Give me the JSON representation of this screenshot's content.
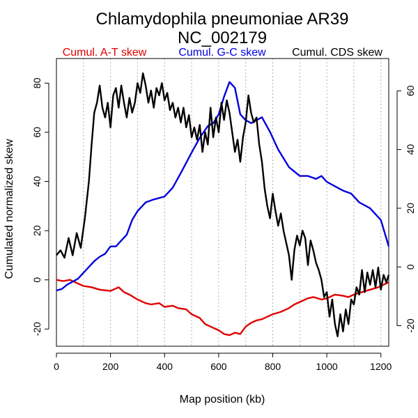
{
  "chart_data": {
    "type": "line",
    "title": "Chlamydophila pneumoniae AR39",
    "subtitle": "NC_002179",
    "xlabel": "Map position (kb)",
    "ylabel": "Cumulated normalized skew",
    "xlim": [
      0,
      1229
    ],
    "ylim_left": [
      -27,
      90
    ],
    "ylim_right": [
      -27,
      71
    ],
    "x_ticks": [
      0,
      200,
      400,
      600,
      800,
      1000,
      1200
    ],
    "y_ticks_left": [
      -20,
      0,
      20,
      40,
      60,
      80
    ],
    "y_ticks_right": [
      -20,
      0,
      20,
      40,
      60
    ],
    "grid_x": [
      0,
      100,
      200,
      300,
      400,
      500,
      600,
      700,
      800,
      900,
      1000,
      1100,
      1200
    ],
    "legend": [
      {
        "label": "Cumul. A-T skew",
        "color": "#e00000"
      },
      {
        "label": "Cumul. G-C skew",
        "color": "#0000dd"
      },
      {
        "label": "Cumul. CDS skew",
        "color": "#000000"
      }
    ],
    "series": [
      {
        "name": "Cumul. A-T skew",
        "color": "#e00000",
        "axis": "left",
        "x": [
          0,
          25,
          50,
          80,
          100,
          130,
          160,
          200,
          230,
          250,
          270,
          300,
          330,
          350,
          380,
          400,
          430,
          450,
          480,
          500,
          530,
          550,
          570,
          600,
          620,
          640,
          660,
          680,
          700,
          720,
          740,
          760,
          780,
          800,
          830,
          860,
          880,
          900,
          930,
          950,
          980,
          1000,
          1030,
          1060,
          1080,
          1100,
          1130,
          1160,
          1190,
          1229
        ],
        "values": [
          0,
          -0.5,
          0,
          -1.5,
          -2.5,
          -3,
          -4,
          -4.5,
          -3,
          -5,
          -6,
          -8,
          -9.5,
          -10,
          -9.5,
          -11,
          -10.5,
          -11.5,
          -12,
          -14,
          -15.5,
          -18,
          -19,
          -20.5,
          -22,
          -22.5,
          -21.5,
          -22,
          -19,
          -17.5,
          -16.5,
          -16,
          -15,
          -14,
          -13,
          -11.5,
          -10,
          -9,
          -7.5,
          -7,
          -8,
          -7.5,
          -6,
          -6.5,
          -7,
          -6,
          -5,
          -4,
          -3,
          -1
        ]
      },
      {
        "name": "Cumul. G-C skew",
        "color": "#0000dd",
        "axis": "right",
        "x": [
          0,
          20,
          40,
          60,
          80,
          100,
          120,
          140,
          160,
          180,
          200,
          220,
          240,
          260,
          280,
          300,
          330,
          360,
          400,
          430,
          460,
          500,
          530,
          560,
          580,
          600,
          620,
          640,
          660,
          680,
          700,
          720,
          760,
          790,
          820,
          860,
          900,
          930,
          960,
          980,
          1000,
          1040,
          1060,
          1090,
          1120,
          1160,
          1200,
          1229
        ],
        "values": [
          -8,
          -7.5,
          -6,
          -5,
          -4,
          -2,
          0,
          2,
          3.5,
          4.5,
          7,
          7,
          9,
          11,
          16,
          19,
          22,
          23,
          24,
          27,
          32,
          39,
          44,
          48,
          49,
          52,
          58,
          63,
          61,
          52,
          50,
          49,
          51,
          46,
          40,
          34,
          31,
          31,
          30,
          31,
          29,
          27,
          26,
          25,
          22,
          20,
          16,
          7
        ]
      },
      {
        "name": "Cumul. CDS skew",
        "color": "#000000",
        "axis": "left",
        "x": [
          0,
          15,
          30,
          45,
          60,
          75,
          90,
          105,
          120,
          130,
          140,
          150,
          160,
          170,
          180,
          190,
          200,
          210,
          220,
          230,
          240,
          250,
          260,
          270,
          280,
          290,
          300,
          310,
          320,
          330,
          340,
          350,
          360,
          370,
          380,
          390,
          400,
          410,
          420,
          430,
          440,
          450,
          460,
          470,
          480,
          490,
          500,
          510,
          520,
          530,
          540,
          550,
          560,
          570,
          580,
          590,
          600,
          610,
          620,
          630,
          640,
          650,
          660,
          670,
          680,
          690,
          700,
          710,
          720,
          730,
          740,
          750,
          760,
          770,
          780,
          790,
          800,
          810,
          820,
          830,
          840,
          850,
          860,
          870,
          880,
          890,
          900,
          910,
          920,
          930,
          940,
          950,
          960,
          970,
          980,
          990,
          1000,
          1010,
          1020,
          1030,
          1040,
          1050,
          1060,
          1070,
          1080,
          1090,
          1100,
          1110,
          1120,
          1130,
          1140,
          1150,
          1160,
          1170,
          1180,
          1190,
          1200,
          1210,
          1220,
          1229
        ],
        "values": [
          10,
          12,
          9,
          17,
          10,
          19,
          13,
          25,
          40,
          55,
          68,
          72,
          79,
          70,
          66,
          72,
          62,
          75,
          78,
          70,
          79,
          72,
          66,
          74,
          68,
          72,
          80,
          76,
          84,
          79,
          72,
          77,
          70,
          78,
          75,
          80,
          73,
          76,
          69,
          72,
          66,
          70,
          64,
          70,
          62,
          67,
          58,
          62,
          57,
          63,
          52,
          60,
          55,
          70,
          58,
          66,
          60,
          72,
          65,
          73,
          68,
          60,
          52,
          57,
          48,
          58,
          64,
          75,
          68,
          64,
          66,
          55,
          48,
          37,
          30,
          25,
          35,
          28,
          22,
          27,
          20,
          15,
          10,
          0,
          12,
          18,
          14,
          20,
          17,
          6,
          16,
          12,
          7,
          4,
          0,
          -7,
          -5,
          -15,
          -8,
          -18,
          -23,
          -14,
          -21,
          -12,
          -18,
          -8,
          -10,
          -3,
          -6,
          4,
          -5,
          3,
          -2,
          4,
          -3,
          5,
          -4,
          2,
          -1,
          2
        ]
      }
    ]
  }
}
